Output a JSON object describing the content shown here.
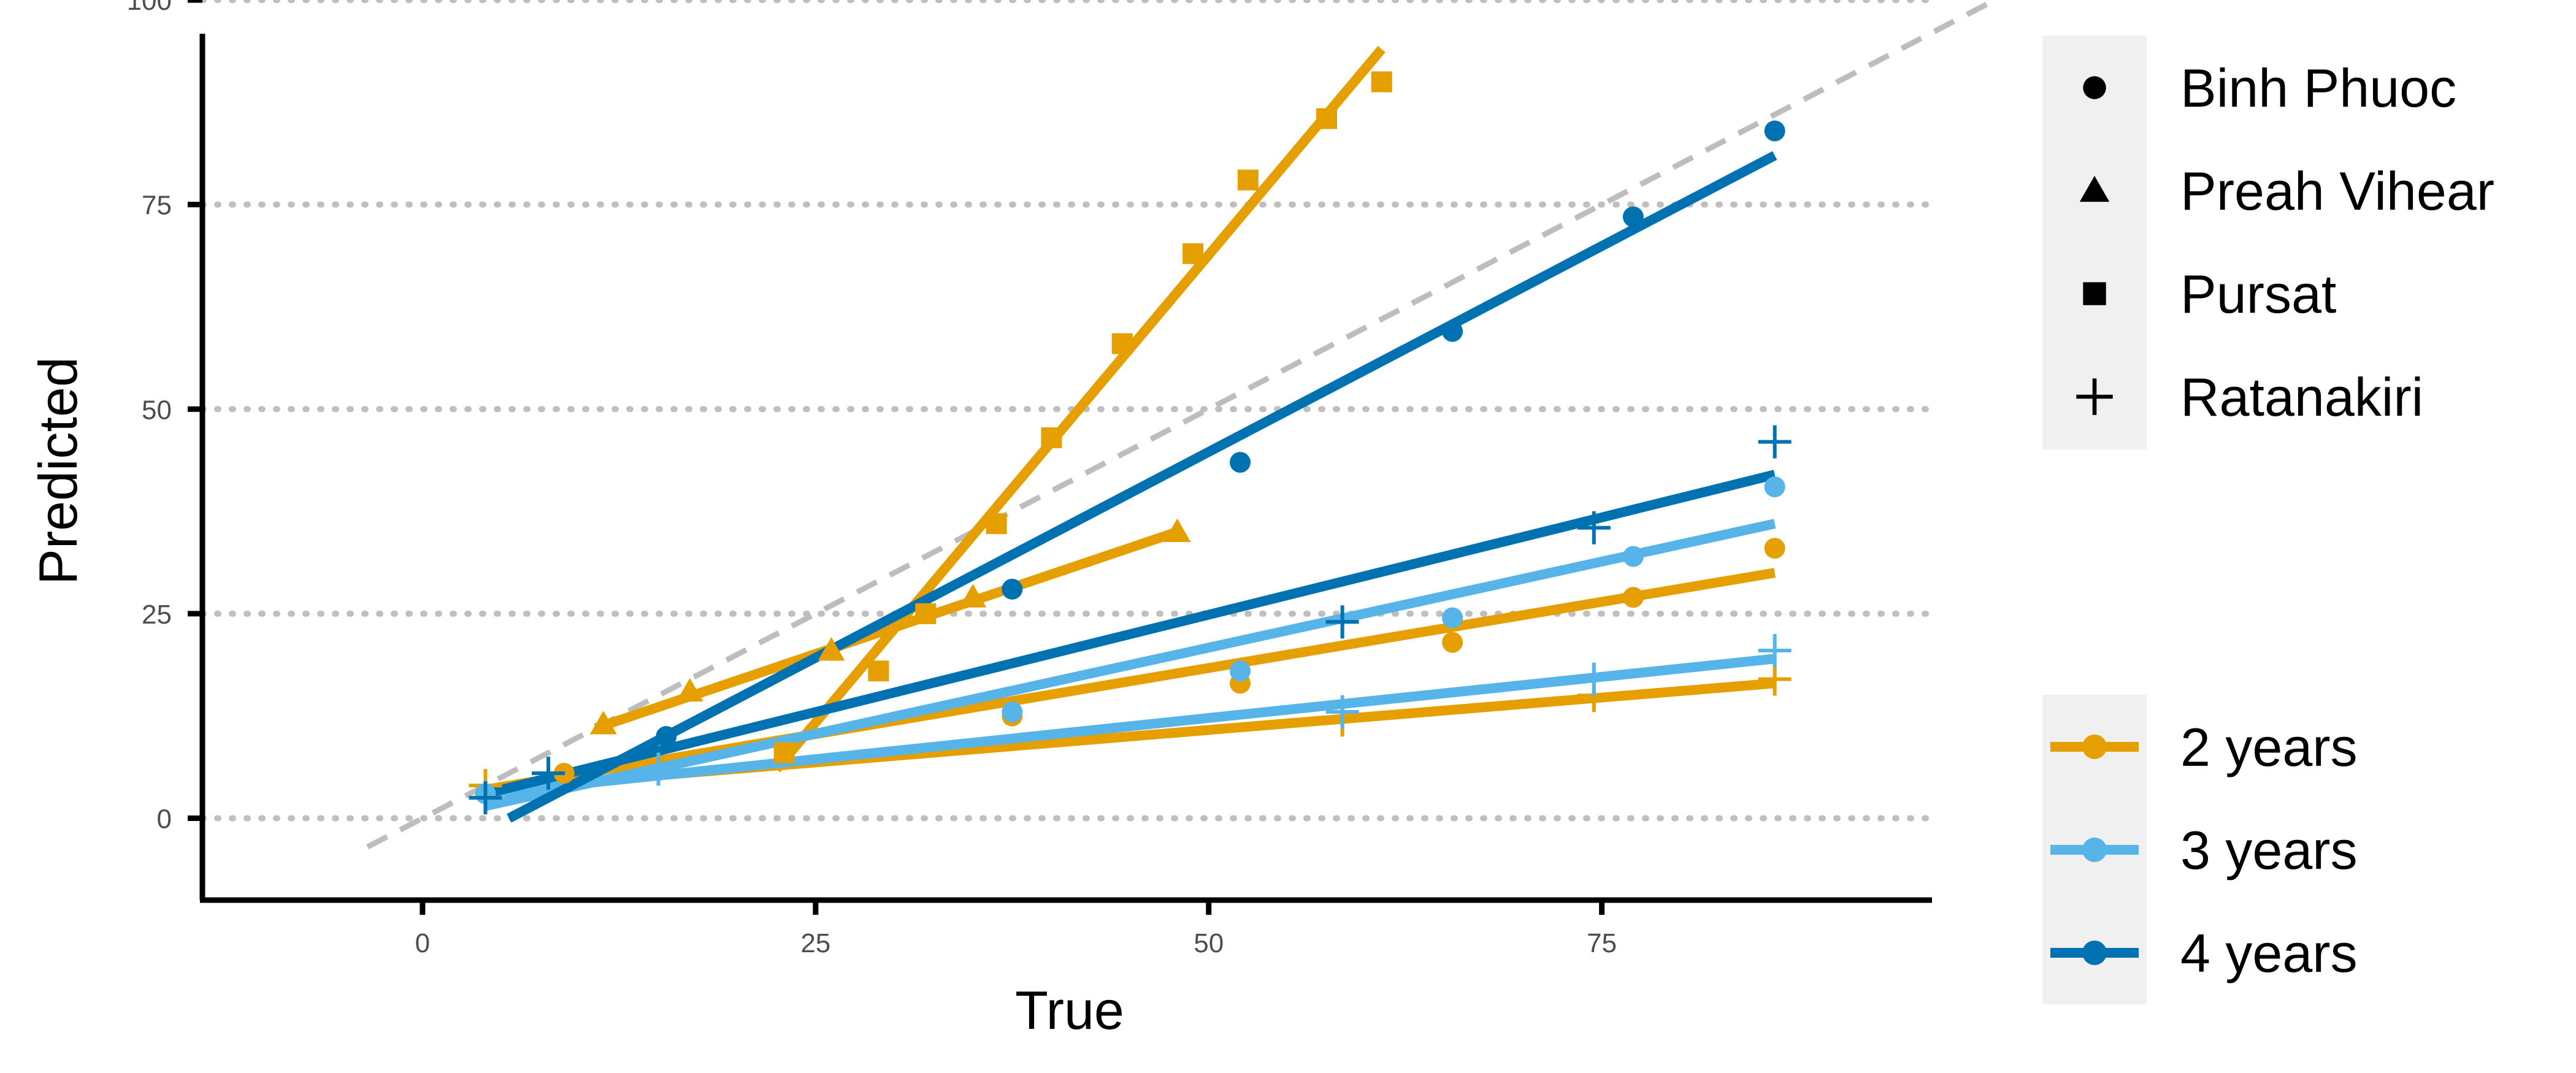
{
  "chart_data": {
    "type": "scatter",
    "xlabel": "True",
    "ylabel": "Predicted",
    "xlim": [
      -14,
      96
    ],
    "ylim": [
      -10,
      100
    ],
    "xticks": [
      0,
      25,
      50,
      75
    ],
    "yticks": [
      0,
      25,
      50,
      75,
      100
    ],
    "grid": "horizontal dotted",
    "reference_line": {
      "slope": 1,
      "intercept": 0,
      "x_range": [
        -3.5,
        100
      ],
      "color": "#bdbdbd",
      "style": "dashed"
    },
    "colors": {
      "2 years": "#e69f00",
      "3 years": "#56b4e9",
      "4 years": "#0072b2"
    },
    "shape_legend": {
      "position": "top-right",
      "entries": [
        {
          "label": "Binh Phuoc",
          "shape": "circle"
        },
        {
          "label": "Preah Vihear",
          "shape": "triangle"
        },
        {
          "label": "Pursat",
          "shape": "square"
        },
        {
          "label": "Ratanakiri",
          "shape": "plus"
        }
      ]
    },
    "color_legend": {
      "position": "right",
      "entries": [
        "2 years",
        "3 years",
        "4 years"
      ]
    },
    "series": [
      {
        "group": "2 years",
        "site": "Pursat",
        "shape": "square",
        "points": [
          [
            23,
            8
          ],
          [
            29,
            18
          ],
          [
            32,
            25
          ],
          [
            36.5,
            36
          ],
          [
            40,
            46.5
          ],
          [
            44.5,
            58
          ],
          [
            49,
            69
          ],
          [
            52.5,
            78
          ],
          [
            57.5,
            85.5
          ],
          [
            61,
            90
          ]
        ],
        "fit": [
          [
            22.5,
            6
          ],
          [
            61,
            94
          ]
        ]
      },
      {
        "group": "2 years",
        "site": "Preah Vihear",
        "shape": "triangle",
        "points": [
          [
            11.5,
            11.5
          ],
          [
            17,
            15.5
          ],
          [
            26,
            20.5
          ],
          [
            35,
            27
          ],
          [
            48,
            35
          ]
        ],
        "fit": [
          [
            11,
            11
          ],
          [
            48,
            35
          ]
        ]
      },
      {
        "group": "2 years",
        "site": "Binh Phuoc",
        "shape": "circle",
        "points": [
          [
            9,
            5.5
          ],
          [
            37.5,
            12.5
          ],
          [
            52,
            16.5
          ],
          [
            65.5,
            21.5
          ],
          [
            77,
            27
          ],
          [
            86,
            33
          ]
        ],
        "fit": [
          [
            4,
            3.5
          ],
          [
            86,
            30
          ]
        ]
      },
      {
        "group": "2 years",
        "site": "Ratanakiri",
        "shape": "plus",
        "points": [
          [
            4,
            4
          ],
          [
            58.5,
            12
          ],
          [
            74.5,
            15
          ],
          [
            86,
            17
          ]
        ],
        "fit": [
          [
            4,
            3.5
          ],
          [
            86,
            16.5
          ]
        ]
      },
      {
        "group": "3 years",
        "site": "Binh Phuoc",
        "shape": "circle",
        "points": [
          [
            4,
            3
          ],
          [
            37.5,
            13
          ],
          [
            52,
            18
          ],
          [
            65.5,
            24.5
          ],
          [
            77,
            32
          ],
          [
            86,
            40.5
          ]
        ],
        "fit": [
          [
            4,
            1.5
          ],
          [
            86,
            36
          ]
        ]
      },
      {
        "group": "3 years",
        "site": "Ratanakiri",
        "shape": "plus",
        "points": [
          [
            4,
            2.5
          ],
          [
            15,
            6
          ],
          [
            58.5,
            13
          ],
          [
            74.5,
            17
          ],
          [
            86,
            20.5
          ]
        ],
        "fit": [
          [
            4,
            3
          ],
          [
            86,
            19.5
          ]
        ]
      },
      {
        "group": "4 years",
        "site": "Binh Phuoc",
        "shape": "circle",
        "points": [
          [
            15.5,
            10
          ],
          [
            37.5,
            28
          ],
          [
            52,
            43.5
          ],
          [
            65.5,
            59.5
          ],
          [
            77,
            73.5
          ],
          [
            86,
            84
          ]
        ],
        "fit": [
          [
            5.5,
            0
          ],
          [
            86,
            81
          ]
        ]
      },
      {
        "group": "4 years",
        "site": "Ratanakiri",
        "shape": "plus",
        "points": [
          [
            4,
            2.5
          ],
          [
            8,
            5.5
          ],
          [
            58.5,
            24
          ],
          [
            74.5,
            35.5
          ],
          [
            86,
            46
          ]
        ],
        "fit": [
          [
            4,
            3
          ],
          [
            86,
            42
          ]
        ]
      }
    ]
  }
}
